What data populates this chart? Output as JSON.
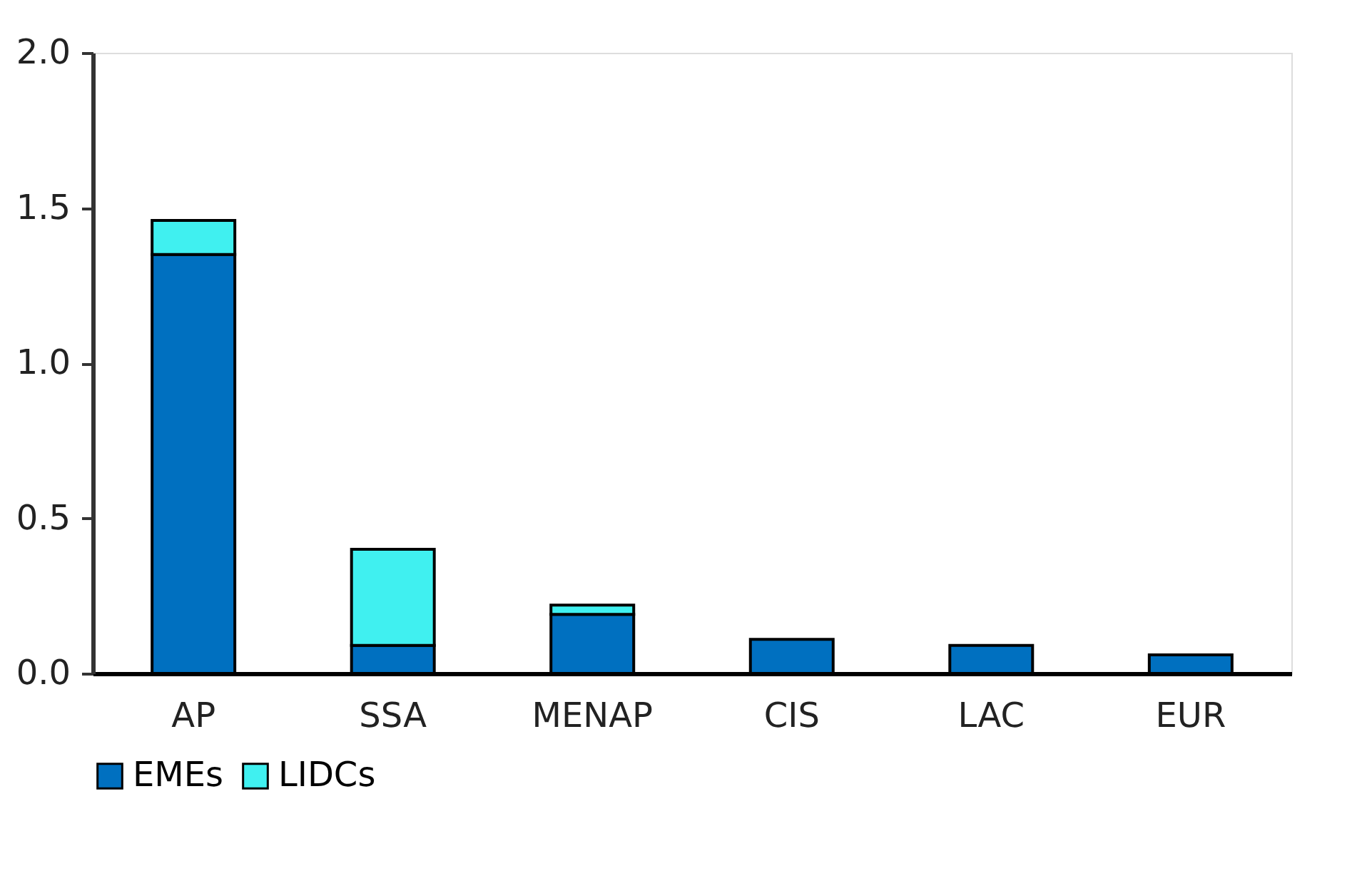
{
  "chart_data": {
    "type": "bar",
    "stacked": true,
    "categories": [
      "AP",
      "SSA",
      "MENAP",
      "CIS",
      "LAC",
      "EUR"
    ],
    "series": [
      {
        "name": "EMEs",
        "color": "#0070c0",
        "values": [
          1.35,
          0.09,
          0.19,
          0.11,
          0.09,
          0.06
        ]
      },
      {
        "name": "LIDCs",
        "color": "#40f0f0",
        "values": [
          0.11,
          0.31,
          0.03,
          null,
          null,
          null
        ]
      }
    ],
    "ylim": [
      0,
      2
    ],
    "yticks": [
      {
        "value": 0,
        "label": "0.0"
      },
      {
        "value": 0.5,
        "label": "0.5"
      },
      {
        "value": 1,
        "label": "1.0"
      },
      {
        "value": 1.5,
        "label": "1.5"
      },
      {
        "value": 2,
        "label": "2.0"
      }
    ],
    "grid": false,
    "legend": "bottom"
  }
}
